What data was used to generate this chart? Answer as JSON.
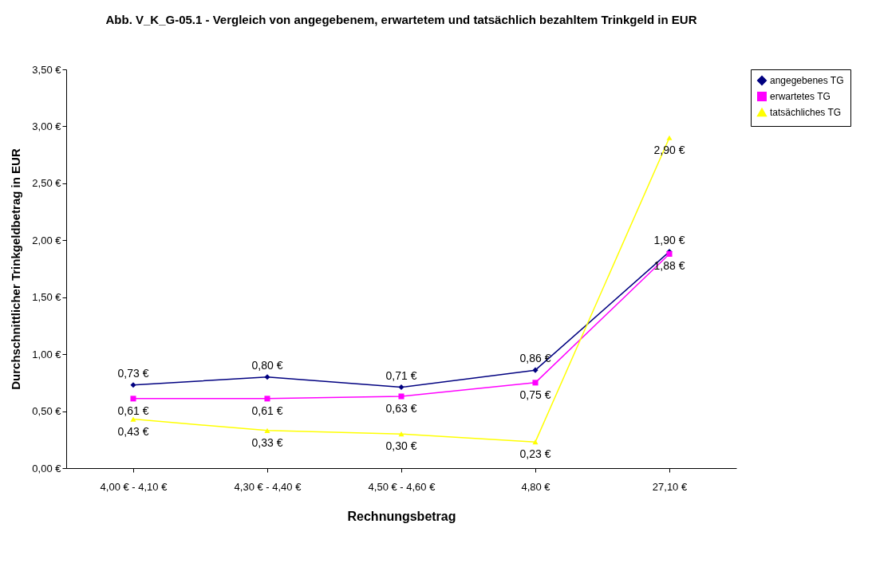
{
  "chart_data": {
    "type": "line",
    "title": "Abb. V_K_G-05.1 - Vergleich von angegebenem, erwartetem und tatsächlich bezahltem Trinkgeld in EUR",
    "xlabel": "Rechnungsbetrag",
    "ylabel": "Durchschnittlicher Trinkgeldbetrag in EUR",
    "categories": [
      "4,00 € - 4,10 €",
      "4,30 € - 4,40 €",
      "4,50 € - 4,60 €",
      "4,80 €",
      "27,10 €"
    ],
    "series": [
      {
        "name": "angegebenes TG",
        "color": "#000080",
        "marker": "diamond",
        "values": [
          0.73,
          0.8,
          0.71,
          0.86,
          1.9
        ],
        "value_labels": [
          "0,73 €",
          "0,80 €",
          "0,71 €",
          "0,86 €",
          "1,90 €"
        ]
      },
      {
        "name": "erwartetes TG",
        "color": "#ff00ff",
        "marker": "square",
        "values": [
          0.61,
          0.61,
          0.63,
          0.75,
          1.88
        ],
        "value_labels": [
          "0,61 €",
          "0,61 €",
          "0,63 €",
          "0,75 €",
          "1,88 €"
        ]
      },
      {
        "name": "tatsächliches TG",
        "color": "#ffff00",
        "marker": "triangle",
        "values": [
          0.43,
          0.33,
          0.3,
          0.23,
          2.9
        ],
        "value_labels": [
          "0,43 €",
          "0,33 €",
          "0,30 €",
          "0,23 €",
          "2,90 €"
        ]
      }
    ],
    "ylim": [
      0,
      3.5
    ],
    "yticks": [
      {
        "value": 0,
        "label": "0,00 €"
      },
      {
        "value": 0.5,
        "label": "0,50 €"
      },
      {
        "value": 1,
        "label": "1,00 €"
      },
      {
        "value": 1.5,
        "label": "1,50 €"
      },
      {
        "value": 2,
        "label": "2,00 €"
      },
      {
        "value": 2.5,
        "label": "2,50 €"
      },
      {
        "value": 3,
        "label": "3,00 €"
      },
      {
        "value": 3.5,
        "label": "3,50 €"
      }
    ],
    "grid": false,
    "legend": "right",
    "line_style": "solid"
  }
}
